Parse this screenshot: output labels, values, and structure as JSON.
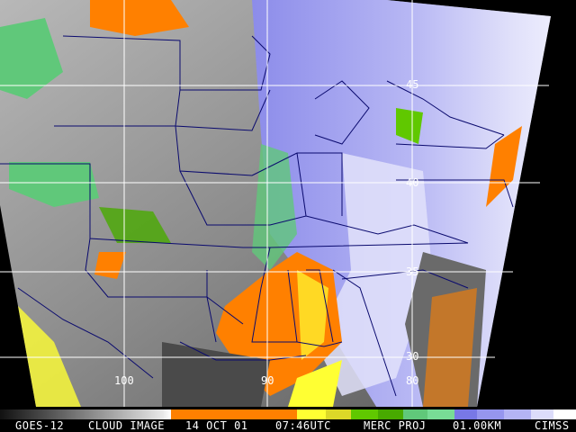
{
  "satellite": "GOES-12",
  "product": "CLOUD IMAGE",
  "date": "14 OCT 01",
  "time": "07:46UTC",
  "projection": "MERC PROJ",
  "resolution": "01.00KM",
  "credit": "CIMSS",
  "latitude_labels": [
    "45",
    "40",
    "35",
    "30"
  ],
  "longitude_labels": [
    "100",
    "90",
    "80"
  ],
  "colors": {
    "background": "#000000",
    "grid": "#ffffff",
    "borders": "#0a0a6e",
    "low_cloud_orange": "#ff8000",
    "yellow": "#ffff33",
    "green": "#5fc800",
    "blue": "#7878e6",
    "lavender": "#dcdcfa"
  },
  "colorbar": [
    "#ff8000",
    "#ffff33",
    "#dcd828",
    "#60c800",
    "#48aa00",
    "#60c87a",
    "#78dc96",
    "#7878e6",
    "#9696ee",
    "#b4b4f4",
    "#dcdcfa",
    "#ffffff"
  ]
}
